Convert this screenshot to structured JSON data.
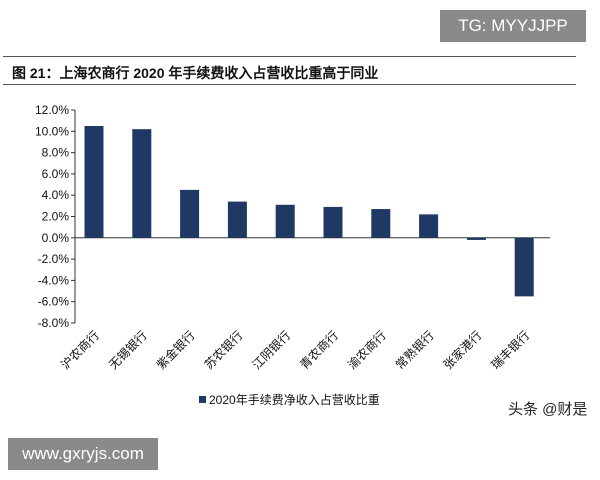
{
  "watermark_top": "TG: MYYJJPP",
  "watermark_bottom": "www.gxryjs.com",
  "watermark_source": "头条 @财是",
  "chart_data": {
    "type": "bar",
    "title": "图 21：上海农商行 2020 年手续费收入占营收比重高于同业",
    "categories": [
      "沪农商行",
      "无锡银行",
      "紫金银行",
      "苏农银行",
      "江阴银行",
      "青农商行",
      "渝农商行",
      "常熟银行",
      "张家港行",
      "瑞丰银行"
    ],
    "series": [
      {
        "name": "2020年手续费净收入占营收比重",
        "values": [
          10.5,
          10.2,
          4.5,
          3.4,
          3.1,
          2.9,
          2.7,
          2.2,
          -0.2,
          -5.5
        ],
        "color": "#1f3864"
      }
    ],
    "yticks": [
      "12.0%",
      "10.0%",
      "8.0%",
      "6.0%",
      "4.0%",
      "2.0%",
      "0.0%",
      "-2.0%",
      "-4.0%",
      "-6.0%",
      "-8.0%"
    ],
    "ylim": [
      -8,
      12
    ],
    "grid": false,
    "legend": "bottom"
  }
}
